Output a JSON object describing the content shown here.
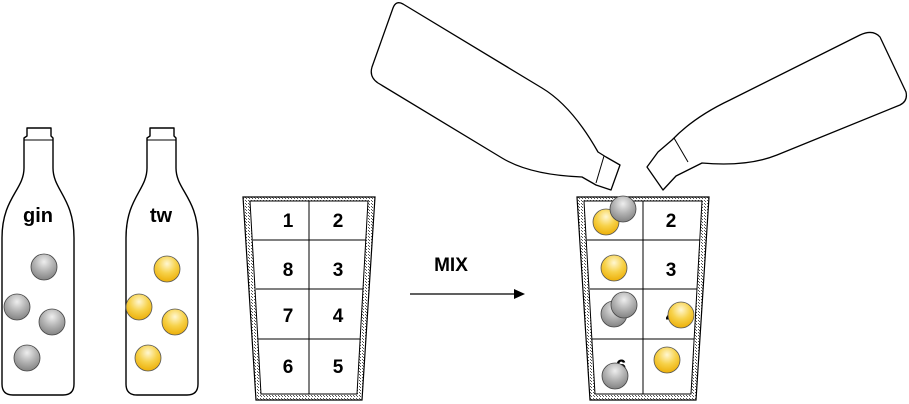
{
  "bottles": [
    {
      "label": "gin",
      "ball_type": "gin",
      "ball_count": 4
    },
    {
      "label": "tw",
      "ball_type": "tonic",
      "ball_count": 4
    }
  ],
  "glass_cells": {
    "left_column": [
      "1",
      "8",
      "7",
      "6"
    ],
    "right_column": [
      "2",
      "3",
      "4",
      "5"
    ]
  },
  "arrow": {
    "label": "MIX"
  },
  "mixed_glass": {
    "left_column": [
      "",
      "",
      "",
      "6"
    ],
    "right_column": [
      "2",
      "3",
      "4",
      "5"
    ]
  },
  "colors": {
    "gin_ball": "#9a9a9a",
    "gin_ball_highlight": "#e8e8e8",
    "tonic_ball": "#f2c21a",
    "tonic_ball_highlight": "#fff6cf",
    "stroke": "#000000",
    "glass_hatch": "#555555"
  }
}
